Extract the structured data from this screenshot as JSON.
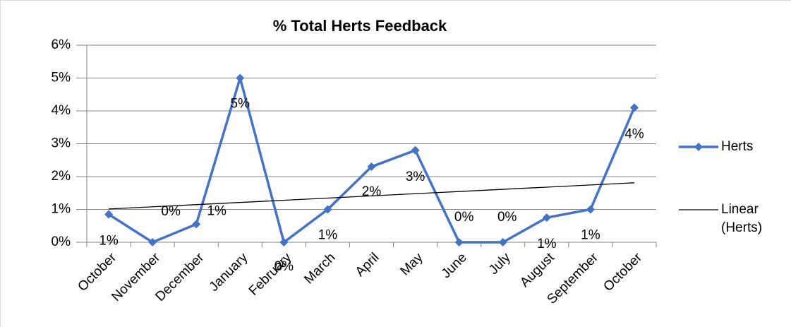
{
  "chart_data": {
    "type": "line",
    "title": "% Total Herts Feedback",
    "categories": [
      "October",
      "November",
      "December",
      "January",
      "February",
      "March",
      "April",
      "May",
      "June",
      "July",
      "August",
      "September",
      "October"
    ],
    "series": [
      {
        "name": "Herts",
        "color": "#4472c4",
        "values": [
          0.85,
          0,
          0.55,
          5,
          0,
          1,
          2.3,
          2.8,
          0,
          0,
          0.75,
          1,
          4.1
        ],
        "value_labels": [
          "1%",
          "0%",
          "1%",
          "5%",
          "0%",
          "1%",
          "2%",
          "3%",
          "0%",
          "0%",
          "1%",
          "1%",
          "4%"
        ]
      }
    ],
    "trendline": {
      "name": "Linear (Herts)",
      "color": "#000000"
    },
    "ylim": [
      0,
      6
    ],
    "yticks": [
      {
        "value": 0,
        "label": "0%"
      },
      {
        "value": 1,
        "label": "1%"
      },
      {
        "value": 2,
        "label": "2%"
      },
      {
        "value": 3,
        "label": "3%"
      },
      {
        "value": 4,
        "label": "4%"
      },
      {
        "value": 5,
        "label": "5%"
      },
      {
        "value": 6,
        "label": "6%"
      }
    ],
    "grid": true,
    "legend": "right"
  }
}
